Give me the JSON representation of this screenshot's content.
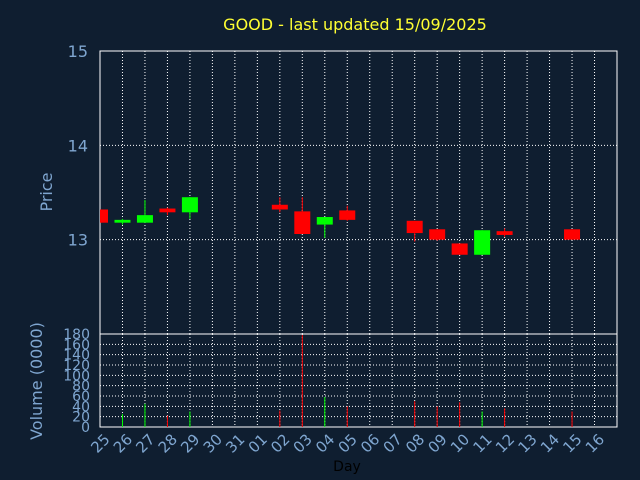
{
  "colors": {
    "background": "#0f1e30",
    "title": "#ffff33",
    "axis_text": "#7fa6d0",
    "grid": "#ffffff",
    "up": "#00ff00",
    "down": "#ff0000",
    "day_label": "#000000"
  },
  "chart_data": {
    "type": "candlestick",
    "title": "GOOD - last updated 15/09/2025",
    "xlabel": "Day",
    "ylabel_price": "Price",
    "ylabel_volume": "Volume (0000)",
    "price_ylim": [
      12,
      15
    ],
    "price_ticks": [
      "13",
      "14",
      "15"
    ],
    "volume_ylim": [
      0,
      180
    ],
    "volume_ticks": [
      "0",
      "20",
      "40",
      "60",
      "80",
      "100",
      "120",
      "140",
      "160",
      "180"
    ],
    "x_ticks": [
      "25",
      "26",
      "27",
      "28",
      "29",
      "30",
      "31",
      "01",
      "02",
      "03",
      "04",
      "05",
      "06",
      "07",
      "08",
      "09",
      "10",
      "11",
      "12",
      "13",
      "14",
      "15",
      "16"
    ],
    "grid": true,
    "candles": [
      {
        "day": "25",
        "open": 13.32,
        "high": 13.32,
        "low": 13.18,
        "close": 13.18,
        "volume": 0
      },
      {
        "day": "26",
        "open": 13.18,
        "high": 13.22,
        "low": 13.16,
        "close": 13.21,
        "volume": 25
      },
      {
        "day": "27",
        "open": 13.18,
        "high": 13.42,
        "low": 13.18,
        "close": 13.26,
        "volume": 45
      },
      {
        "day": "28",
        "open": 13.33,
        "high": 13.34,
        "low": 13.26,
        "close": 13.29,
        "volume": 22
      },
      {
        "day": "29",
        "open": 13.29,
        "high": 13.45,
        "low": 13.22,
        "close": 13.45,
        "volume": 30
      },
      {
        "day": "02",
        "open": 13.37,
        "high": 13.45,
        "low": 13.29,
        "close": 13.32,
        "volume": 32
      },
      {
        "day": "03",
        "open": 13.3,
        "high": 13.45,
        "low": 13.06,
        "close": 13.06,
        "volume": 178
      },
      {
        "day": "04",
        "open": 13.16,
        "high": 13.24,
        "low": 13.02,
        "close": 13.24,
        "volume": 58
      },
      {
        "day": "05",
        "open": 13.31,
        "high": 13.36,
        "low": 13.2,
        "close": 13.21,
        "volume": 40
      },
      {
        "day": "08",
        "open": 13.2,
        "high": 13.2,
        "low": 12.98,
        "close": 13.07,
        "volume": 50
      },
      {
        "day": "09",
        "open": 13.11,
        "high": 13.11,
        "low": 12.99,
        "close": 13.0,
        "volume": 40
      },
      {
        "day": "10",
        "open": 12.96,
        "high": 12.96,
        "low": 12.84,
        "close": 12.84,
        "volume": 48
      },
      {
        "day": "11",
        "open": 12.84,
        "high": 13.1,
        "low": 12.84,
        "close": 13.1,
        "volume": 30
      },
      {
        "day": "12",
        "open": 13.09,
        "high": 13.12,
        "low": 13.03,
        "close": 13.05,
        "volume": 36
      },
      {
        "day": "15",
        "open": 13.11,
        "high": 13.11,
        "low": 13.0,
        "close": 13.0,
        "volume": 30
      }
    ]
  }
}
